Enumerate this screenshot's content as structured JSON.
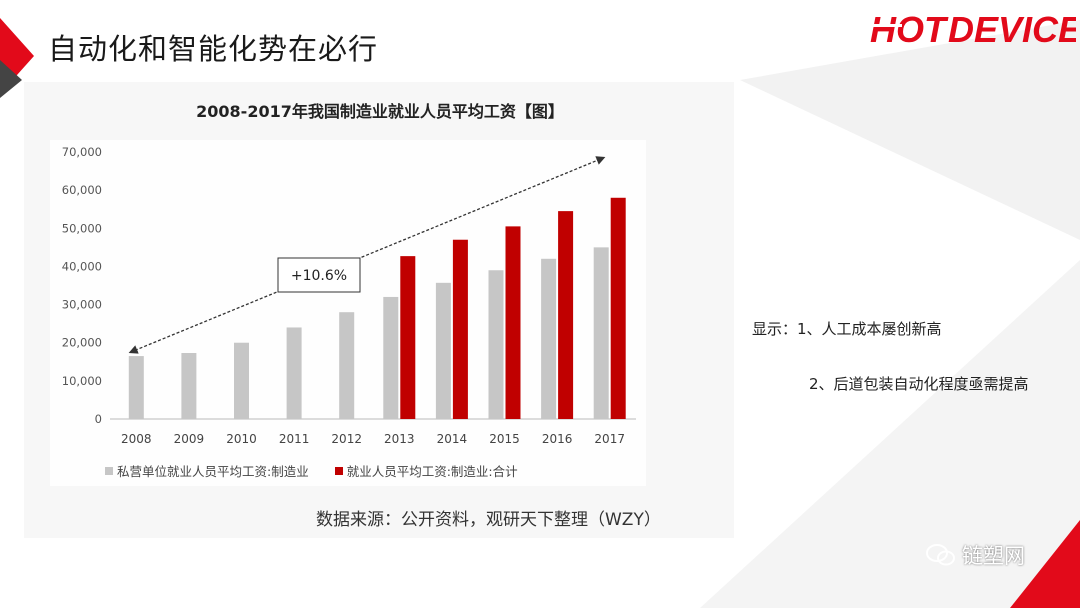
{
  "slide": {
    "title": "自动化和智能化势在必行",
    "logo_text": "HOTDEVICE"
  },
  "chart_data": {
    "type": "bar",
    "title": "2008-2017年我国制造业就业人员平均工资【图】",
    "categories": [
      "2008",
      "2009",
      "2010",
      "2011",
      "2012",
      "2013",
      "2014",
      "2015",
      "2016",
      "2017"
    ],
    "series": [
      {
        "name": "私营单位就业人员平均工资:制造业",
        "color": "#c6c6c6",
        "values": [
          16500,
          17300,
          20000,
          24000,
          28000,
          32000,
          35700,
          39000,
          42000,
          45000
        ]
      },
      {
        "name": "就业人员平均工资:制造业:合计",
        "color": "#c00000",
        "values": [
          null,
          null,
          null,
          null,
          null,
          42700,
          47000,
          50500,
          54500,
          58000
        ]
      }
    ],
    "y_ticks": [
      "0",
      "10,000",
      "20,000",
      "30,000",
      "40,000",
      "50,000",
      "60,000",
      "70,000"
    ],
    "ylim": [
      0,
      70000
    ],
    "grid": false,
    "legend_position": "bottom",
    "annotation": "+10.6%"
  },
  "source_text": "数据来源：公开资料，观研天下整理（WZY）",
  "notes": {
    "line1": "显示：1、人工成本屡创新高",
    "line2": "2、后道包装自动化程度亟需提高"
  },
  "watermark": {
    "text": "链塑网",
    "icon": "wechat-icon"
  }
}
